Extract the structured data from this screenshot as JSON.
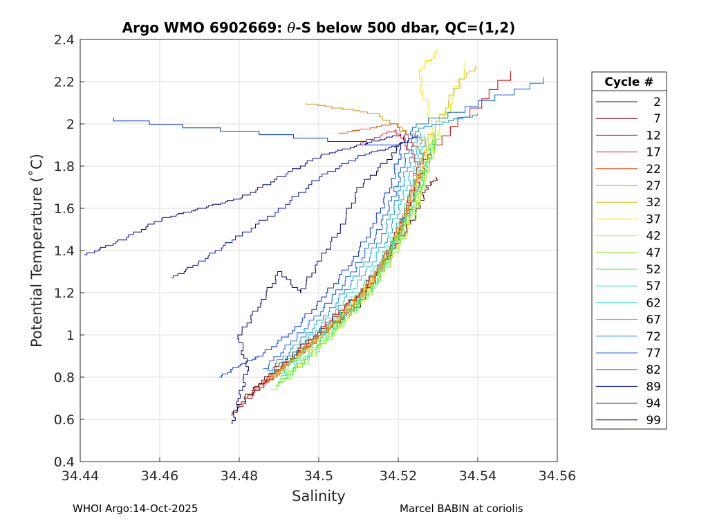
{
  "chart_data": {
    "type": "line",
    "title_parts": [
      "Argo WMO 6902669: ",
      "θ",
      "-S below 500 dbar,  QC=(1,2)"
    ],
    "xlabel": "Salinity",
    "ylabel": "Potential Temperature (˚C)",
    "xlim": [
      34.44,
      34.56
    ],
    "ylim": [
      0.4,
      2.4
    ],
    "xticks": [
      34.44,
      34.46,
      34.48,
      34.5,
      34.52,
      34.54,
      34.56
    ],
    "xtick_labels": [
      "34.44",
      "34.46",
      "34.48",
      "34.5",
      "34.52",
      "34.54",
      "34.56"
    ],
    "yticks": [
      0.4,
      0.6,
      0.8,
      1.0,
      1.2,
      1.4,
      1.6,
      1.8,
      2.0,
      2.2,
      2.4
    ],
    "ytick_labels": [
      "0.4",
      "0.6",
      "0.8",
      "1",
      "1.2",
      "1.4",
      "1.6",
      "1.8",
      "2",
      "2.2",
      "2.4"
    ],
    "grid": true,
    "legend": {
      "title": "Cycle #",
      "position": "right",
      "entries": [
        {
          "label": "2",
          "color": "#5a0000"
        },
        {
          "label": "7",
          "color": "#8a0000"
        },
        {
          "label": "12",
          "color": "#cc0000"
        },
        {
          "label": "17",
          "color": "#e8201a"
        },
        {
          "label": "22",
          "color": "#e8501a"
        },
        {
          "label": "27",
          "color": "#e08800"
        },
        {
          "label": "32",
          "color": "#d8b800"
        },
        {
          "label": "37",
          "color": "#f0e000"
        },
        {
          "label": "42",
          "color": "#d0f000"
        },
        {
          "label": "47",
          "color": "#80ee20"
        },
        {
          "label": "52",
          "color": "#40f040"
        },
        {
          "label": "57",
          "color": "#20e8a0"
        },
        {
          "label": "62",
          "color": "#20e0d0"
        },
        {
          "label": "67",
          "color": "#10c0e0"
        },
        {
          "label": "72",
          "color": "#1090e0"
        },
        {
          "label": "77",
          "color": "#1060e8"
        },
        {
          "label": "82",
          "color": "#0030e0"
        },
        {
          "label": "89",
          "color": "#0010c0"
        },
        {
          "label": "94",
          "color": "#000090"
        },
        {
          "label": "99",
          "color": "#000070"
        }
      ]
    },
    "series": [
      {
        "name": "2",
        "color": "#5a0000",
        "x": [
          34.478,
          34.482,
          34.49,
          34.5,
          34.51,
          34.515,
          34.52,
          34.525,
          34.527,
          34.53
        ],
        "y": [
          0.62,
          0.72,
          0.85,
          1.0,
          1.15,
          1.3,
          1.45,
          1.6,
          1.7,
          1.75
        ]
      },
      {
        "name": "7",
        "color": "#8a0000",
        "x": [
          34.48,
          34.485,
          34.492,
          34.502,
          34.51,
          34.516,
          34.52,
          34.524,
          34.526
        ],
        "y": [
          0.66,
          0.77,
          0.9,
          1.05,
          1.2,
          1.35,
          1.5,
          1.65,
          1.8
        ]
      },
      {
        "name": "12",
        "color": "#cc0000",
        "x": [
          34.482,
          34.488,
          34.495,
          34.503,
          34.511,
          34.517,
          34.521,
          34.525,
          34.528,
          34.548
        ],
        "y": [
          0.7,
          0.8,
          0.92,
          1.08,
          1.22,
          1.38,
          1.55,
          1.72,
          1.9,
          2.25
        ]
      },
      {
        "name": "17",
        "color": "#e8201a",
        "x": [
          34.484,
          34.49,
          34.498,
          34.506,
          34.513,
          34.518,
          34.522,
          34.525,
          34.52,
          34.51
        ],
        "y": [
          0.74,
          0.84,
          0.96,
          1.1,
          1.25,
          1.42,
          1.6,
          1.82,
          1.97,
          1.9
        ]
      },
      {
        "name": "22",
        "color": "#e8501a",
        "x": [
          34.486,
          34.492,
          34.5,
          34.508,
          34.515,
          34.52,
          34.523,
          34.526,
          34.52,
          34.505
        ],
        "y": [
          0.76,
          0.87,
          1.0,
          1.14,
          1.3,
          1.48,
          1.66,
          1.86,
          2.0,
          1.95
        ]
      },
      {
        "name": "27",
        "color": "#e08800",
        "x": [
          34.487,
          34.494,
          34.502,
          34.51,
          34.516,
          34.521,
          34.524,
          34.527,
          34.515,
          34.497
        ],
        "y": [
          0.78,
          0.9,
          1.03,
          1.18,
          1.34,
          1.52,
          1.7,
          1.92,
          2.05,
          2.1
        ]
      },
      {
        "name": "32",
        "color": "#d8b800",
        "x": [
          34.488,
          34.496,
          34.504,
          34.512,
          34.517,
          34.522,
          34.525,
          34.528,
          34.535,
          34.54
        ],
        "y": [
          0.8,
          0.92,
          1.06,
          1.22,
          1.38,
          1.56,
          1.75,
          1.95,
          2.2,
          2.28
        ]
      },
      {
        "name": "37",
        "color": "#f0e000",
        "x": [
          34.489,
          34.497,
          34.505,
          34.513,
          34.518,
          34.523,
          34.526,
          34.529,
          34.525,
          34.53
        ],
        "y": [
          0.82,
          0.94,
          1.09,
          1.25,
          1.42,
          1.6,
          1.8,
          1.98,
          2.25,
          2.35
        ]
      },
      {
        "name": "42",
        "color": "#d0f000",
        "x": [
          34.49,
          34.498,
          34.506,
          34.514,
          34.519,
          34.524,
          34.527,
          34.53,
          34.537
        ],
        "y": [
          0.78,
          0.92,
          1.07,
          1.24,
          1.41,
          1.59,
          1.78,
          1.97,
          2.3
        ]
      },
      {
        "name": "47",
        "color": "#80ee20",
        "x": [
          34.488,
          34.497,
          34.505,
          34.513,
          34.519,
          34.524,
          34.527,
          34.53
        ],
        "y": [
          0.74,
          0.88,
          1.04,
          1.21,
          1.39,
          1.57,
          1.77,
          1.95
        ]
      },
      {
        "name": "52",
        "color": "#40f040",
        "x": [
          34.489,
          34.497,
          34.505,
          34.513,
          34.518,
          34.523,
          34.527,
          34.529
        ],
        "y": [
          0.76,
          0.9,
          1.05,
          1.22,
          1.4,
          1.58,
          1.78,
          1.92
        ]
      },
      {
        "name": "57",
        "color": "#20e8a0",
        "x": [
          34.49,
          34.498,
          34.506,
          34.514,
          34.519,
          34.523,
          34.527,
          34.529
        ],
        "y": [
          0.79,
          0.93,
          1.08,
          1.25,
          1.43,
          1.61,
          1.8,
          1.96
        ]
      },
      {
        "name": "62",
        "color": "#20e0d0",
        "x": [
          34.489,
          34.497,
          34.505,
          34.512,
          34.518,
          34.522,
          34.525,
          34.527
        ],
        "y": [
          0.8,
          0.94,
          1.1,
          1.26,
          1.44,
          1.62,
          1.8,
          1.95
        ]
      },
      {
        "name": "67",
        "color": "#10c0e0",
        "x": [
          34.488,
          34.496,
          34.504,
          34.511,
          34.517,
          34.521,
          34.524,
          34.526
        ],
        "y": [
          0.82,
          0.96,
          1.12,
          1.28,
          1.46,
          1.64,
          1.82,
          1.96
        ]
      },
      {
        "name": "72",
        "color": "#1090e0",
        "x": [
          34.487,
          34.495,
          34.503,
          34.51,
          34.516,
          34.52,
          34.523,
          34.525,
          34.54
        ],
        "y": [
          0.83,
          0.97,
          1.13,
          1.3,
          1.48,
          1.66,
          1.84,
          1.98,
          2.05
        ]
      },
      {
        "name": "77",
        "color": "#1060e8",
        "x": [
          34.486,
          34.494,
          34.502,
          34.509,
          34.515,
          34.519,
          34.522,
          34.524,
          34.557
        ],
        "y": [
          0.84,
          0.99,
          1.15,
          1.32,
          1.5,
          1.68,
          1.86,
          2.0,
          2.22
        ]
      },
      {
        "name": "82",
        "color": "#0030e0",
        "x": [
          34.475,
          34.48,
          34.485,
          34.493,
          34.501,
          34.508,
          34.514,
          34.518,
          34.521,
          34.448
        ],
        "y": [
          0.8,
          0.86,
          0.9,
          1.02,
          1.18,
          1.35,
          1.53,
          1.72,
          1.9,
          2.03
        ]
      },
      {
        "name": "89",
        "color": "#0010c0",
        "x": [
          34.463,
          34.47,
          34.478,
          34.49,
          34.5,
          34.51,
          34.52,
          34.525
        ],
        "y": [
          1.27,
          1.35,
          1.45,
          1.6,
          1.75,
          1.85,
          1.9,
          1.95
        ]
      },
      {
        "name": "94",
        "color": "#000090",
        "x": [
          34.441,
          34.45,
          34.46,
          34.47,
          34.48,
          34.49,
          34.5,
          34.51,
          34.52
        ],
        "y": [
          1.38,
          1.45,
          1.55,
          1.6,
          1.65,
          1.75,
          1.85,
          1.9,
          1.95
        ]
      },
      {
        "name": "99",
        "color": "#000070",
        "x": [
          34.478,
          34.48,
          34.482,
          34.48,
          34.485,
          34.49,
          34.495,
          34.5,
          34.505,
          34.51,
          34.518,
          34.522
        ],
        "y": [
          0.58,
          0.7,
          0.85,
          1.0,
          1.15,
          1.3,
          1.2,
          1.35,
          1.5,
          1.7,
          1.85,
          1.95
        ]
      }
    ]
  },
  "footer": {
    "left": "WHOI Argo:14-Oct-2025",
    "right": "Marcel BABIN at coriolis"
  }
}
